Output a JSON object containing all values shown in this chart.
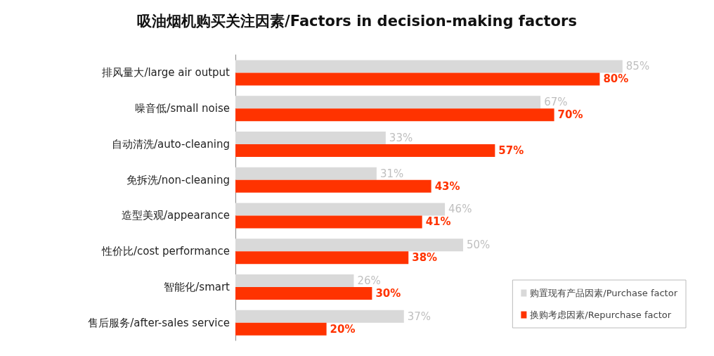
{
  "chart_data": {
    "type": "bar",
    "orientation": "horizontal",
    "title": "吸油烟机购买关注因素/Factors in decision-making factors",
    "categories": [
      "排风量大/large air output",
      "噪音低/small noise",
      "自动清洗/auto-cleaning",
      "免拆洗/non-cleaning",
      "造型美观/appearance",
      "性价比/cost performance",
      "智能化/smart",
      "售后服务/after-sales service"
    ],
    "series": [
      {
        "name": "购置现有产品因素/Purchase factor",
        "color": "#d9d9d9",
        "values": [
          85,
          67,
          33,
          31,
          46,
          50,
          26,
          37
        ],
        "value_labels": [
          "85%",
          "67%",
          "33%",
          "31%",
          "46%",
          "50%",
          "26%",
          "37%"
        ]
      },
      {
        "name": "换购考虑因素/Repurchase factor",
        "color": "#ff3300",
        "values": [
          80,
          70,
          57,
          43,
          41,
          38,
          30,
          20
        ],
        "value_labels": [
          "80%",
          "70%",
          "57%",
          "43%",
          "41%",
          "38%",
          "30%",
          "20%"
        ]
      }
    ],
    "legend": "bottom right"
  }
}
